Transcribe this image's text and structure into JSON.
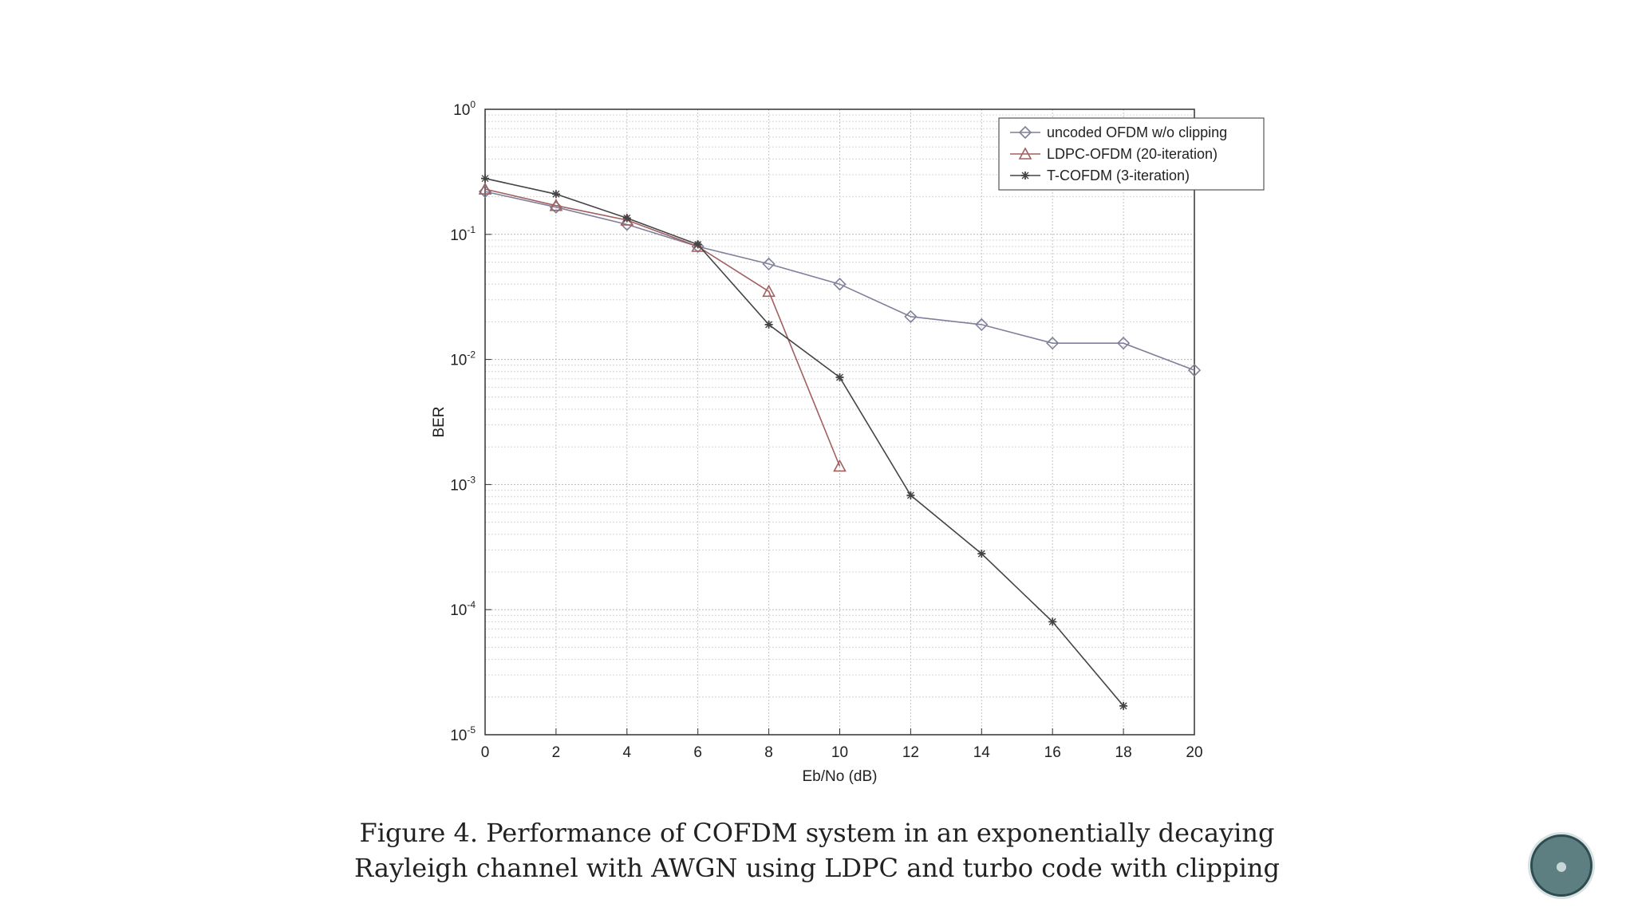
{
  "chart_data": {
    "type": "line",
    "title": "",
    "xlabel": "Eb/No (dB)",
    "ylabel": "BER",
    "xlim": [
      0,
      20
    ],
    "ylim": [
      1e-05,
      1
    ],
    "yscale": "log",
    "grid": true,
    "x_ticks": [
      0,
      2,
      4,
      6,
      8,
      10,
      12,
      14,
      16,
      18,
      20
    ],
    "x_tick_labels": [
      "0",
      "2",
      "4",
      "6",
      "8",
      "10",
      "12",
      "14",
      "16",
      "18",
      "20"
    ],
    "y_ticks": [
      {
        "exp": 0,
        "base": "10",
        "sup": "0"
      },
      {
        "exp": -1,
        "base": "10",
        "sup": "-1"
      },
      {
        "exp": -2,
        "base": "10",
        "sup": "-2"
      },
      {
        "exp": -3,
        "base": "10",
        "sup": "-3"
      },
      {
        "exp": -4,
        "base": "10",
        "sup": "-4"
      },
      {
        "exp": -5,
        "base": "10",
        "sup": "-5"
      }
    ],
    "legend_position": "top-right",
    "series": [
      {
        "name": "uncoded OFDM w/o clipping",
        "marker": "diamond",
        "color": "#7f7f9a",
        "x": [
          0,
          2,
          4,
          6,
          8,
          10,
          12,
          14,
          16,
          18,
          20
        ],
        "values": [
          0.22,
          0.165,
          0.12,
          0.08,
          0.058,
          0.04,
          0.022,
          0.019,
          0.0135,
          0.0135,
          0.0082
        ]
      },
      {
        "name": "LDPC-OFDM (20-iteration)",
        "marker": "triangle",
        "color": "#a06060",
        "x": [
          0,
          2,
          4,
          6,
          8,
          10
        ],
        "values": [
          0.23,
          0.17,
          0.13,
          0.08,
          0.035,
          0.0014
        ]
      },
      {
        "name": "T-COFDM (3-iteration)",
        "marker": "star",
        "color": "#444444",
        "x": [
          0,
          2,
          4,
          6,
          8,
          10,
          12,
          14,
          16,
          18
        ],
        "values": [
          0.28,
          0.21,
          0.135,
          0.083,
          0.019,
          0.0072,
          0.00082,
          0.00028,
          8e-05,
          1.7e-05
        ]
      }
    ]
  },
  "caption": {
    "line1": "Figure 4. Performance of COFDM system in an exponentially decaying",
    "line2": "Rayleigh channel with AWGN using LDPC and turbo code with clipping"
  }
}
